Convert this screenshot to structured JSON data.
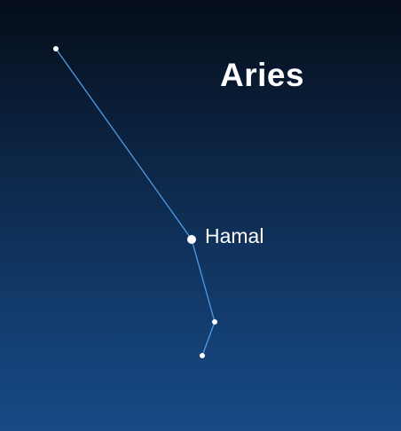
{
  "constellation": {
    "name": "Aries",
    "stars": [
      {
        "label": "",
        "role": "endpoint-top"
      },
      {
        "label": "Hamal",
        "role": "brightest"
      },
      {
        "label": "",
        "role": "middle"
      },
      {
        "label": "",
        "role": "endpoint-bottom"
      }
    ]
  },
  "colors": {
    "line": "#4f9de8",
    "star": "#ffffff",
    "sky_top": "#050d19",
    "sky_bottom": "#174a86"
  }
}
